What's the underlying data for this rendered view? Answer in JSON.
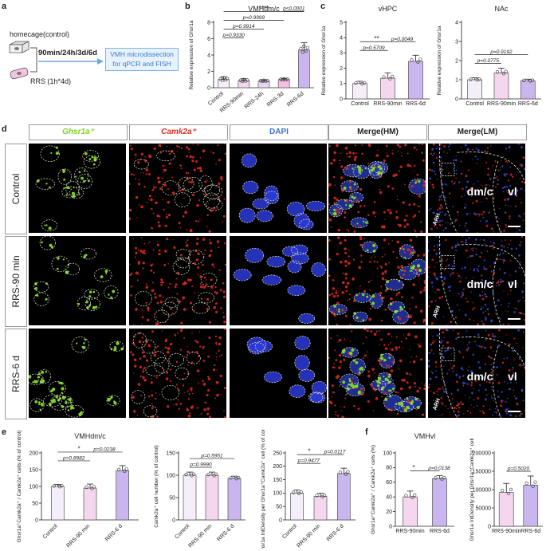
{
  "panel_letters": {
    "a": "a",
    "b": "b",
    "c": "c",
    "d": "d",
    "e": "e",
    "f": "f"
  },
  "schematic": {
    "homecage": "homecage(control)",
    "timepoints": "90min/24h/3d/6d",
    "rrs": "RRS",
    "rrs_schedule": "(1h*4d)",
    "readout_line1": "VMH microdissection",
    "readout_line2": "for qPCR and FISH"
  },
  "micro": {
    "col_headers": [
      "Ghsr1a⁺",
      "Camk2a⁺",
      "DAPI",
      "Merge(HM)",
      "Merge(LM)"
    ],
    "row_labels": [
      "Control",
      "RRS-90 min",
      "RRS-6 d"
    ],
    "lm_labels": {
      "region1": "dm/c",
      "region2": "vl",
      "arh": "ARH"
    }
  },
  "colors": {
    "control_bar": "#f3eef7",
    "rrs90_bar": "#f4d6ee",
    "rrs24_bar": "#e8d5f2",
    "rrs3d_bar": "#f6c0e6",
    "rrs6d_bar": "#c9b6ef",
    "ghsr": "#7ed321",
    "camk": "#e32b1e",
    "dapi": "#2b3bd8"
  },
  "chart_data": [
    {
      "id": "b",
      "type": "bar",
      "title": "VMHdm/c",
      "ylabel": "Relative expression of Ghsr1a",
      "categories": [
        "Control",
        "RRS-90min",
        "RRS-24h",
        "RRS-3d",
        "RRS-6d"
      ],
      "values": [
        1.0,
        0.85,
        0.82,
        1.0,
        4.6
      ],
      "errors": [
        0.35,
        0.25,
        0.15,
        0.15,
        0.9
      ],
      "ylim": [
        0,
        8
      ],
      "yticks": [
        0,
        2,
        4,
        6,
        8
      ],
      "comparisons": [
        {
          "from": 0,
          "to": 1,
          "label": "p=0.9330"
        },
        {
          "from": 0,
          "to": 2,
          "label": "p=0.9914"
        },
        {
          "from": 0,
          "to": 3,
          "label": "p=0.9999"
        },
        {
          "from": 0,
          "to": 4,
          "label": "****"
        },
        {
          "from": 3,
          "to": 4,
          "label": "p<0.0001"
        }
      ]
    },
    {
      "id": "c1",
      "type": "bar",
      "title": "vHPC",
      "ylabel": "Relative expression of Ghsr1a",
      "categories": [
        "Control",
        "RRS-90min",
        "RRS-6d"
      ],
      "values": [
        1.0,
        1.35,
        2.45
      ],
      "errors": [
        0.15,
        0.35,
        0.4
      ],
      "ylim": [
        0,
        5
      ],
      "yticks": [
        0,
        1,
        2,
        3,
        4,
        5
      ],
      "comparisons": [
        {
          "from": 0,
          "to": 1,
          "label": "p=0.5709"
        },
        {
          "from": 0,
          "to": 2,
          "label": "**"
        },
        {
          "from": 0,
          "to": 2,
          "label": "p=0.0049"
        }
      ]
    },
    {
      "id": "c2",
      "type": "bar",
      "title": "NAc",
      "ylabel": "Relative expression of Ghsr1a",
      "categories": [
        "Control",
        "RRS-90min",
        "RRS-6d"
      ],
      "values": [
        1.0,
        1.35,
        0.95
      ],
      "errors": [
        0.1,
        0.25,
        0.08
      ],
      "ylim": [
        0,
        4
      ],
      "yticks": [
        0,
        1,
        2,
        3,
        4
      ],
      "comparisons": [
        {
          "from": 0,
          "to": 1,
          "label": "p=0.0775"
        },
        {
          "from": 0,
          "to": 2,
          "label": "p=0.9192"
        }
      ]
    },
    {
      "id": "e1",
      "type": "bar",
      "title": "VMHdm/c",
      "ylabel": "Ghsr1a⁺Camk2a⁺ / Camk2a⁺ cells (% of control)",
      "categories": [
        "Control",
        "RRS-90 min",
        "RRS-6 d"
      ],
      "values": [
        100,
        95,
        147
      ],
      "errors": [
        6,
        12,
        15
      ],
      "ylim": [
        0,
        200
      ],
      "yticks": [
        0,
        50,
        100,
        150,
        200
      ],
      "comparisons": [
        {
          "from": 0,
          "to": 1,
          "label": "p=0.8982"
        },
        {
          "from": 0,
          "to": 2,
          "label": "*"
        },
        {
          "from": 0,
          "to": 2,
          "label": "p=0.0238"
        }
      ]
    },
    {
      "id": "e2",
      "type": "bar",
      "title": "",
      "ylabel": "Camk2a⁺ cell number (% of control)",
      "categories": [
        "Control",
        "RRS-90 min",
        "RRS-6 d"
      ],
      "values": [
        100,
        100,
        93
      ],
      "errors": [
        7,
        7,
        5
      ],
      "ylim": [
        0,
        150
      ],
      "yticks": [
        0,
        50,
        100,
        150
      ],
      "comparisons": [
        {
          "from": 0,
          "to": 1,
          "label": "p=0.9990"
        },
        {
          "from": 0,
          "to": 2,
          "label": "p=0.5951"
        }
      ]
    },
    {
      "id": "e3",
      "type": "bar",
      "title": "",
      "ylabel": "Ghsr1a IntDensity per Ghsr1a⁺Camk2a⁺ cell (% of control)",
      "categories": [
        "Control",
        "RRS-90 min",
        "RRS-6 d"
      ],
      "values": [
        100,
        88,
        173
      ],
      "errors": [
        12,
        12,
        20
      ],
      "ylim": [
        0,
        250
      ],
      "yticks": [
        0,
        50,
        100,
        150,
        200,
        250
      ],
      "comparisons": [
        {
          "from": 0,
          "to": 1,
          "label": "p=0.9477"
        },
        {
          "from": 0,
          "to": 2,
          "label": "*"
        },
        {
          "from": 0,
          "to": 2,
          "label": "p=0.0117"
        }
      ]
    },
    {
      "id": "f1",
      "type": "bar",
      "title": "VMHvl",
      "ylabel": "Ghsr1a⁺Camk2a⁺ / Camk2a⁺ cells (%)",
      "categories": [
        "RRS-90min",
        "RRS-6d"
      ],
      "values": [
        40,
        65
      ],
      "errors": [
        8,
        4
      ],
      "ylim": [
        0,
        100
      ],
      "yticks": [
        0,
        20,
        40,
        60,
        80,
        100
      ],
      "comparisons": [
        {
          "from": 0,
          "to": 1,
          "label": "*"
        },
        {
          "from": 0,
          "to": 1,
          "label": "p=0.0138"
        }
      ]
    },
    {
      "id": "f2",
      "type": "bar",
      "title": "",
      "ylabel": "Ghsr1a IntDensity per Ghsr1a⁺Camk2a⁺ cell",
      "categories": [
        "RRS-90min",
        "RRS-6d"
      ],
      "values": [
        92000,
        112000
      ],
      "errors": [
        25000,
        25000
      ],
      "ylim": [
        0,
        200000
      ],
      "yticks": [
        0,
        50000,
        100000,
        150000,
        200000
      ],
      "comparisons": [
        {
          "from": 0,
          "to": 1,
          "label": "p=0.5020"
        }
      ]
    }
  ]
}
